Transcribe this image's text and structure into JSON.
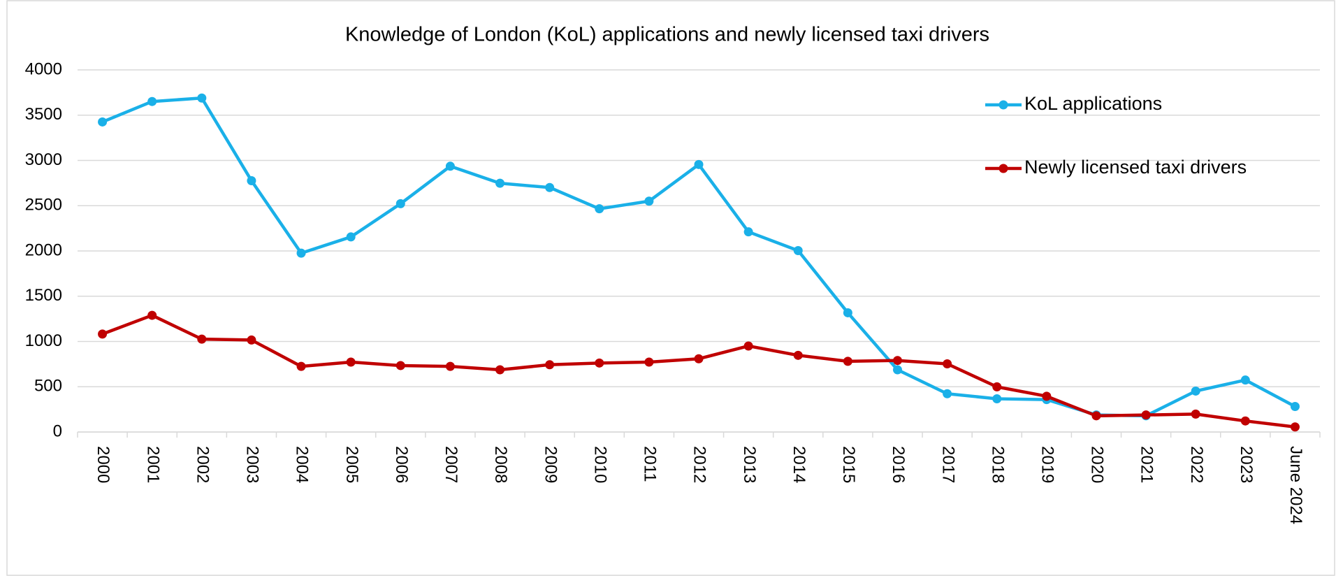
{
  "chart_data": {
    "type": "line",
    "title": "Knowledge of London (KoL) applications and newly licensed taxi drivers",
    "categories": [
      "2000",
      "2001",
      "2002",
      "2003",
      "2004",
      "2005",
      "2006",
      "2007",
      "2008",
      "2009",
      "2010",
      "2011",
      "2012",
      "2013",
      "2014",
      "2015",
      "2016",
      "2017",
      "2018",
      "2019",
      "2020",
      "2021",
      "2022",
      "2023",
      "June 2024"
    ],
    "series": [
      {
        "name": "KoL applications",
        "color": "#1ab0e8",
        "values": [
          3425,
          3651,
          3689,
          2776,
          1976,
          2155,
          2522,
          2936,
          2748,
          2701,
          2466,
          2550,
          2955,
          2211,
          2004,
          1317,
          687,
          423,
          367,
          358,
          188,
          179,
          452,
          574,
          282
        ]
      },
      {
        "name": "Newly licensed taxi drivers",
        "color": "#c00000",
        "values": [
          1082,
          1289,
          1026,
          1016,
          725,
          772,
          734,
          725,
          687,
          743,
          762,
          772,
          809,
          950,
          847,
          781,
          790,
          753,
          499,
          395,
          179,
          188,
          198,
          122,
          56
        ]
      }
    ],
    "ylim": [
      0,
      4000
    ],
    "yticks": [
      0,
      500,
      1000,
      1500,
      2000,
      2500,
      3000,
      3500,
      4000
    ],
    "grid": true
  }
}
